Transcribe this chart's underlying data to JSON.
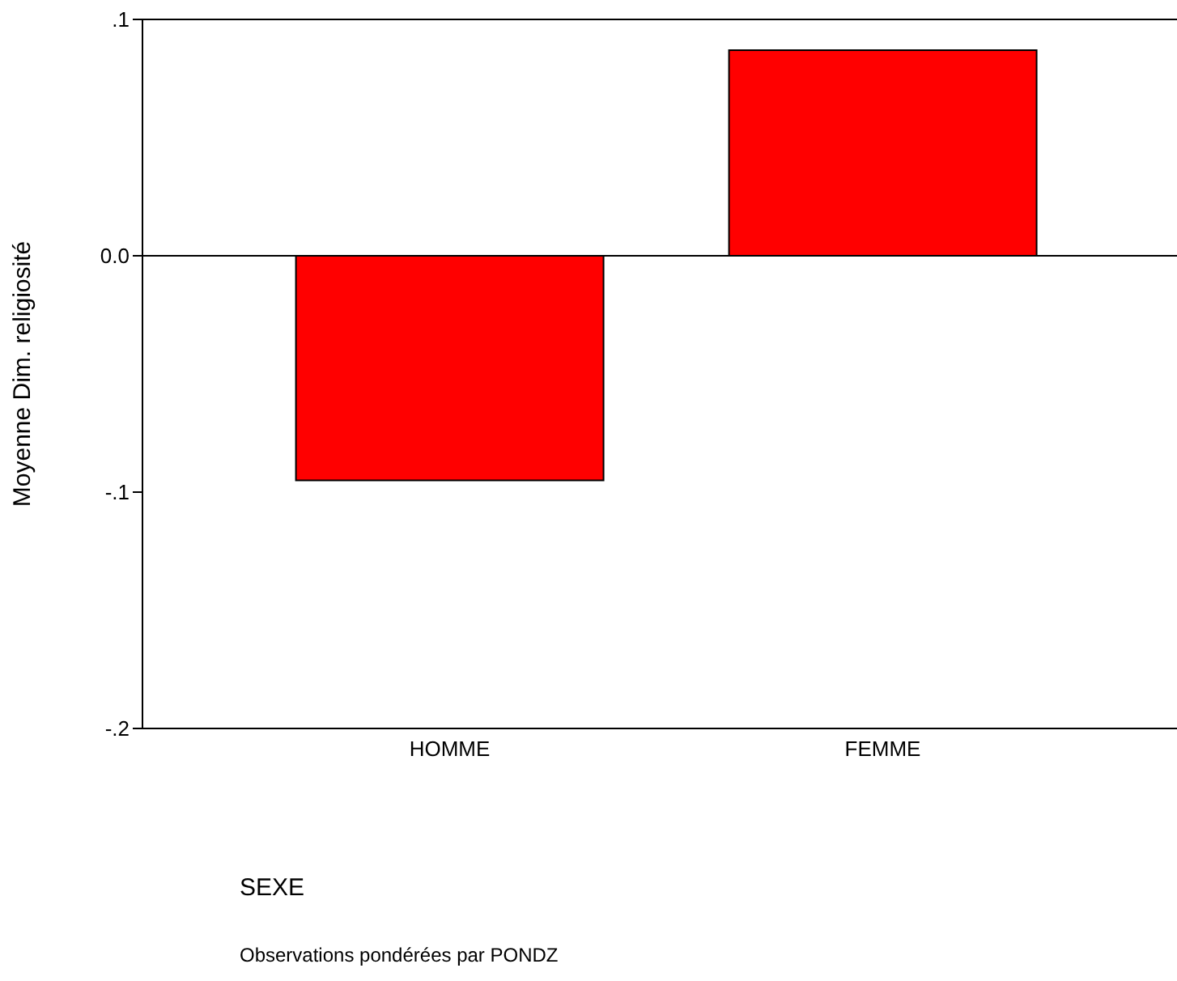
{
  "chart_data": {
    "type": "bar",
    "categories": [
      "HOMME",
      "FEMME"
    ],
    "values": [
      -0.095,
      0.087
    ],
    "color": "#ff0000",
    "ylim": [
      -0.2,
      0.1
    ],
    "yticks": [
      {
        "value": -0.2,
        "label": "-.2"
      },
      {
        "value": -0.1,
        "label": "-.1"
      },
      {
        "value": 0,
        "label": "0.0"
      },
      {
        "value": 0.1,
        "label": ".1"
      }
    ],
    "ylabel": "Moyenne Dim. religiosité",
    "xlabel": "SEXE",
    "annotations": [
      "Observations pondérées par PONDZ"
    ],
    "ref_lines": [
      {
        "axis": "y",
        "value": 0,
        "color": "#000000"
      }
    ],
    "grid": false,
    "legend": false
  }
}
